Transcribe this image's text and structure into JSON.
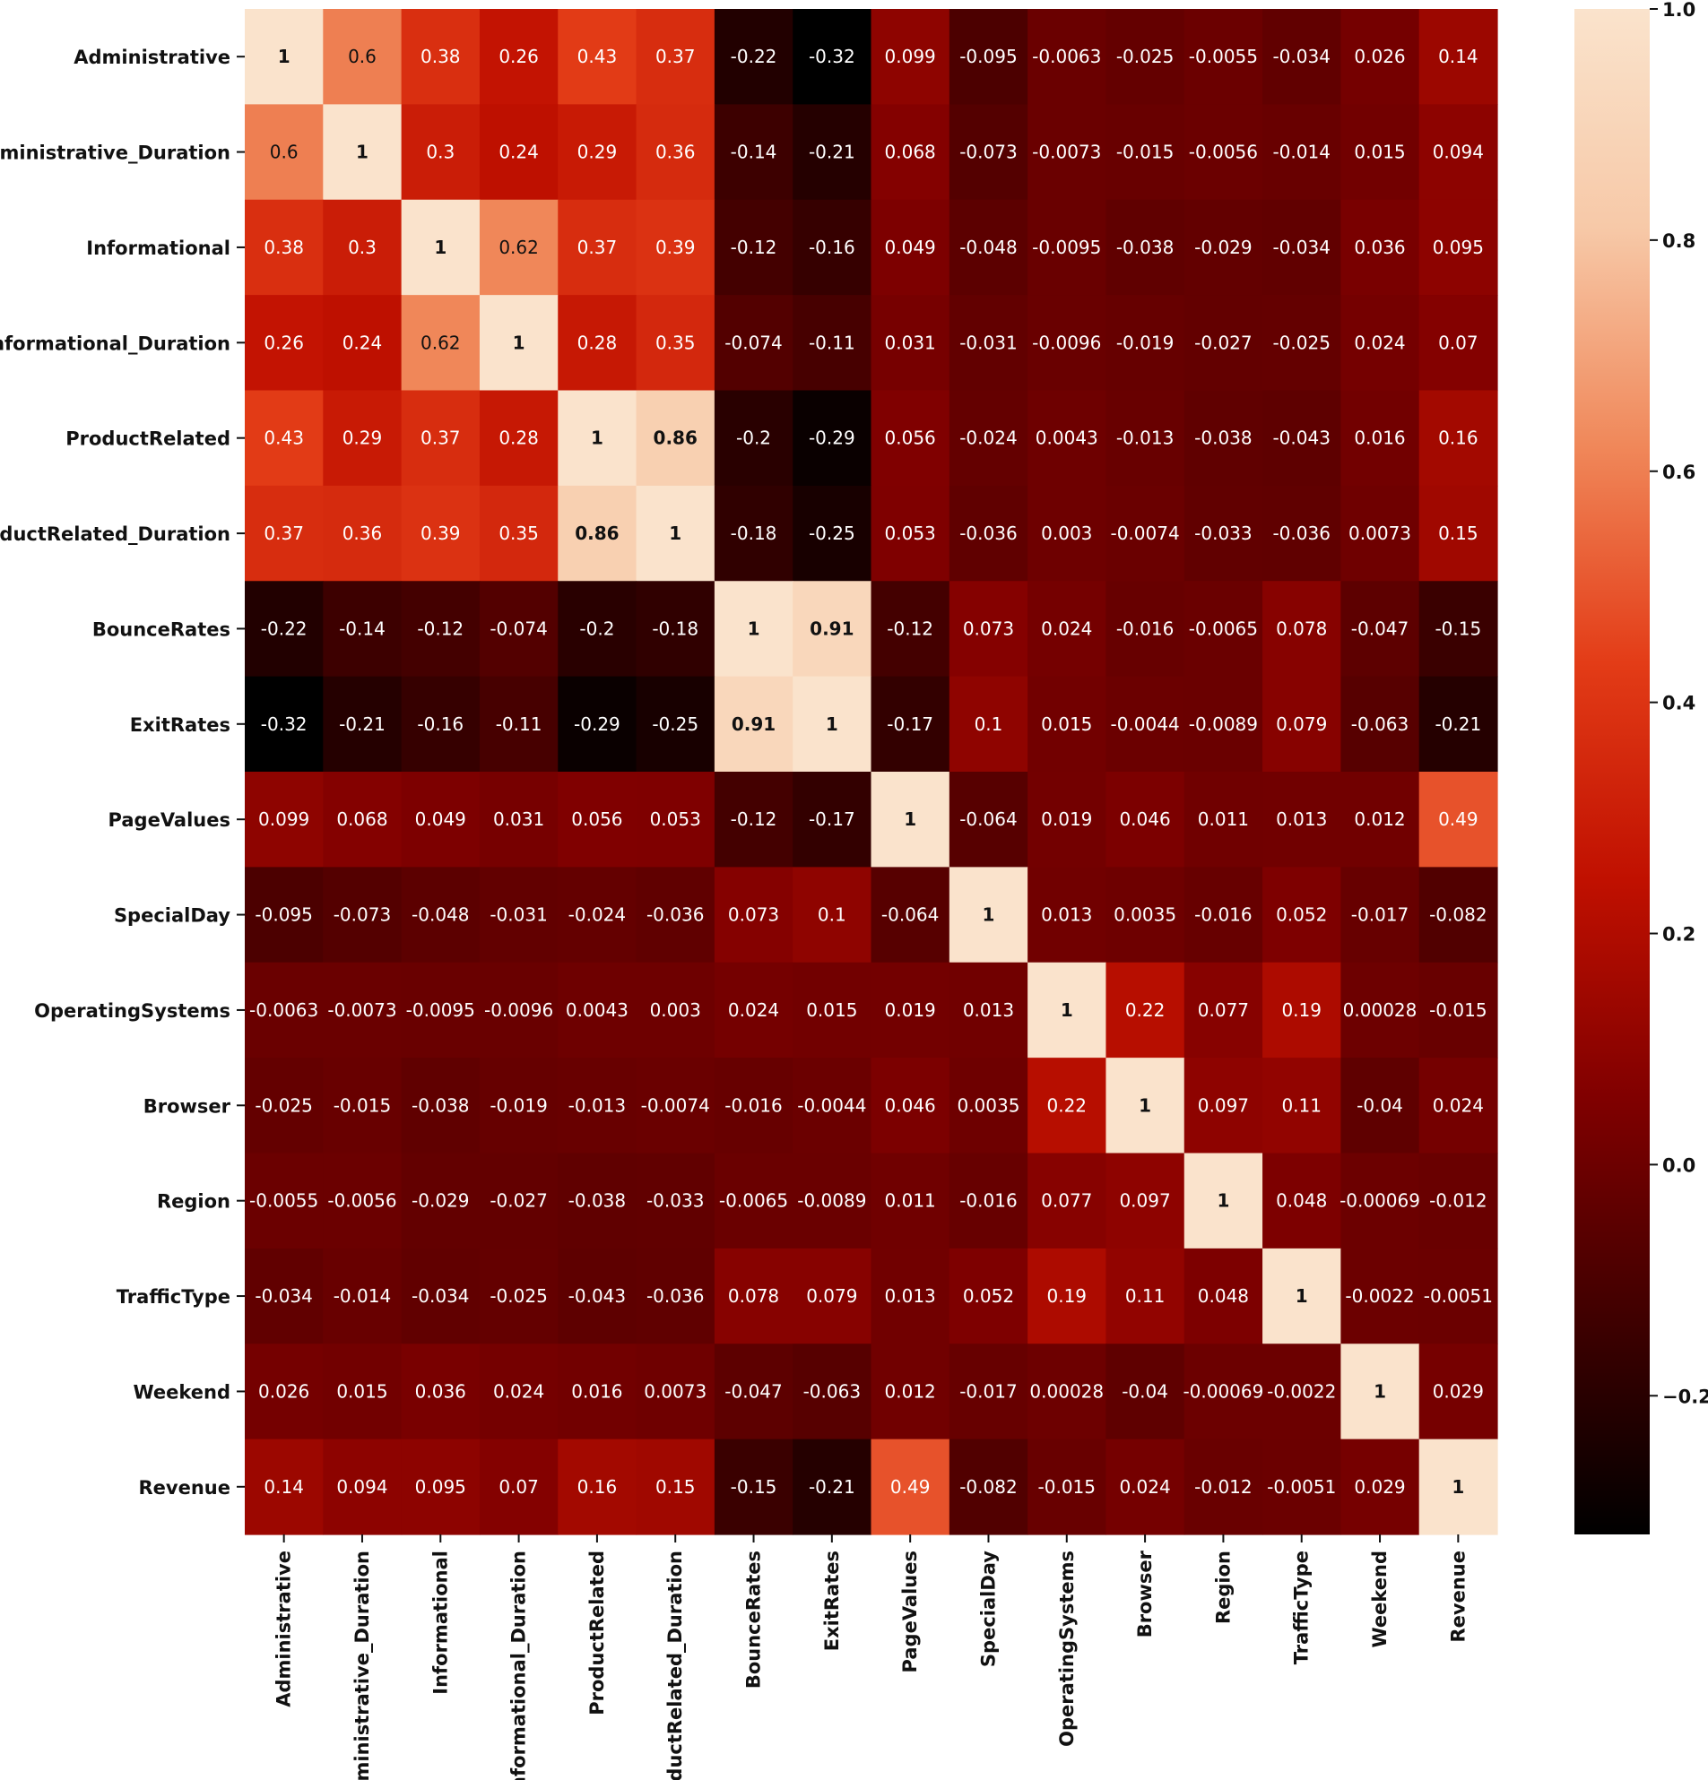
{
  "chart_data": {
    "type": "heatmap",
    "title": "",
    "xlabel": "",
    "ylabel": "",
    "labels": [
      "Administrative",
      "Administrative_Duration",
      "Informational",
      "Informational_Duration",
      "ProductRelated",
      "ProductRelated_Duration",
      "BounceRates",
      "ExitRates",
      "PageValues",
      "SpecialDay",
      "OperatingSystems",
      "Browser",
      "Region",
      "TrafficType",
      "Weekend",
      "Revenue"
    ],
    "matrix": [
      [
        "1",
        "0.6",
        "0.38",
        "0.26",
        "0.43",
        "0.37",
        "-0.22",
        "-0.32",
        "0.099",
        "-0.095",
        "-0.0063",
        "-0.025",
        "-0.0055",
        "-0.034",
        "0.026",
        "0.14"
      ],
      [
        "0.6",
        "1",
        "0.3",
        "0.24",
        "0.29",
        "0.36",
        "-0.14",
        "-0.21",
        "0.068",
        "-0.073",
        "-0.0073",
        "-0.015",
        "-0.0056",
        "-0.014",
        "0.015",
        "0.094"
      ],
      [
        "0.38",
        "0.3",
        "1",
        "0.62",
        "0.37",
        "0.39",
        "-0.12",
        "-0.16",
        "0.049",
        "-0.048",
        "-0.0095",
        "-0.038",
        "-0.029",
        "-0.034",
        "0.036",
        "0.095"
      ],
      [
        "0.26",
        "0.24",
        "0.62",
        "1",
        "0.28",
        "0.35",
        "-0.074",
        "-0.11",
        "0.031",
        "-0.031",
        "-0.0096",
        "-0.019",
        "-0.027",
        "-0.025",
        "0.024",
        "0.07"
      ],
      [
        "0.43",
        "0.29",
        "0.37",
        "0.28",
        "1",
        "0.86",
        "-0.2",
        "-0.29",
        "0.056",
        "-0.024",
        "0.0043",
        "-0.013",
        "-0.038",
        "-0.043",
        "0.016",
        "0.16"
      ],
      [
        "0.37",
        "0.36",
        "0.39",
        "0.35",
        "0.86",
        "1",
        "-0.18",
        "-0.25",
        "0.053",
        "-0.036",
        "0.003",
        "-0.0074",
        "-0.033",
        "-0.036",
        "0.0073",
        "0.15"
      ],
      [
        "-0.22",
        "-0.14",
        "-0.12",
        "-0.074",
        "-0.2",
        "-0.18",
        "1",
        "0.91",
        "-0.12",
        "0.073",
        "0.024",
        "-0.016",
        "-0.0065",
        "0.078",
        "-0.047",
        "-0.15"
      ],
      [
        "-0.32",
        "-0.21",
        "-0.16",
        "-0.11",
        "-0.29",
        "-0.25",
        "0.91",
        "1",
        "-0.17",
        "0.1",
        "0.015",
        "-0.0044",
        "-0.0089",
        "0.079",
        "-0.063",
        "-0.21"
      ],
      [
        "0.099",
        "0.068",
        "0.049",
        "0.031",
        "0.056",
        "0.053",
        "-0.12",
        "-0.17",
        "1",
        "-0.064",
        "0.019",
        "0.046",
        "0.011",
        "0.013",
        "0.012",
        "0.49"
      ],
      [
        "-0.095",
        "-0.073",
        "-0.048",
        "-0.031",
        "-0.024",
        "-0.036",
        "0.073",
        "0.1",
        "-0.064",
        "1",
        "0.013",
        "0.0035",
        "-0.016",
        "0.052",
        "-0.017",
        "-0.082"
      ],
      [
        "-0.0063",
        "-0.0073",
        "-0.0095",
        "-0.0096",
        "0.0043",
        "0.003",
        "0.024",
        "0.015",
        "0.019",
        "0.013",
        "1",
        "0.22",
        "0.077",
        "0.19",
        "0.00028",
        "-0.015"
      ],
      [
        "-0.025",
        "-0.015",
        "-0.038",
        "-0.019",
        "-0.013",
        "-0.0074",
        "-0.016",
        "-0.0044",
        "0.046",
        "0.0035",
        "0.22",
        "1",
        "0.097",
        "0.11",
        "-0.04",
        "0.024"
      ],
      [
        "-0.0055",
        "-0.0056",
        "-0.029",
        "-0.027",
        "-0.038",
        "-0.033",
        "-0.0065",
        "-0.0089",
        "0.011",
        "-0.016",
        "0.077",
        "0.097",
        "1",
        "0.048",
        "-0.00069",
        "-0.012"
      ],
      [
        "-0.034",
        "-0.014",
        "-0.034",
        "-0.025",
        "-0.043",
        "-0.036",
        "0.078",
        "0.079",
        "0.013",
        "0.052",
        "0.19",
        "0.11",
        "0.048",
        "1",
        "-0.0022",
        "-0.0051"
      ],
      [
        "0.026",
        "0.015",
        "0.036",
        "0.024",
        "0.016",
        "0.0073",
        "-0.047",
        "-0.063",
        "0.012",
        "-0.017",
        "0.00028",
        "-0.04",
        "-0.00069",
        "-0.0022",
        "1",
        "0.029"
      ],
      [
        "0.14",
        "0.094",
        "0.095",
        "0.07",
        "0.16",
        "0.15",
        "-0.15",
        "-0.21",
        "0.49",
        "-0.082",
        "-0.015",
        "0.024",
        "-0.012",
        "-0.0051",
        "0.029",
        "1"
      ]
    ],
    "colorbar": {
      "colormap": "gist_heat",
      "vmin": -0.32,
      "vmax": 1.0,
      "ticks": [
        "1.0",
        "0.8",
        "0.6",
        "0.4",
        "0.2",
        "0.0",
        "−0.2"
      ],
      "tick_values": [
        1.0,
        0.8,
        0.6,
        0.4,
        0.2,
        0.0,
        -0.2
      ]
    },
    "colors": {
      "stops": [
        "#000000",
        "#400000",
        "#800000",
        "#c01000",
        "#e33c17",
        "#f0885a",
        "#f7c9a8",
        "#fae3cc"
      ]
    }
  }
}
